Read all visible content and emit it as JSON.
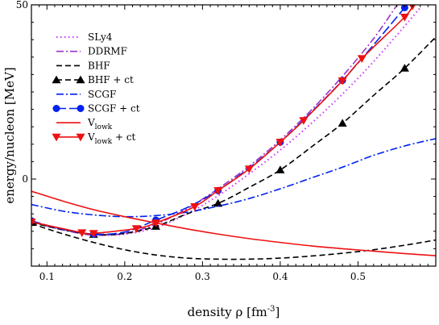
{
  "chart_data": {
    "type": "line",
    "title": "",
    "xlabel": "density ρ [fm",
    "xlabel_sup": "-3",
    "xlabel_tail": "]",
    "ylabel": "energy/nucleon [MeV]",
    "xlim": [
      0.08,
      0.6
    ],
    "ylim": [
      -25,
      50
    ],
    "x_ticks": [
      "0.1",
      "0.2",
      "0.3",
      "0.4",
      "0.5"
    ],
    "x_tick_values": [
      0.1,
      0.2,
      0.3,
      0.4,
      0.5
    ],
    "y_ticks": [
      "0",
      "50"
    ],
    "y_tick_values": [
      0,
      50
    ],
    "grid": false,
    "legend_position": "top-left",
    "series": [
      {
        "name": "SLy4",
        "color": "#cc33ff",
        "dash": "dotted",
        "marker": "none",
        "x": [
          0.08,
          0.12,
          0.16,
          0.2,
          0.24,
          0.28,
          0.32,
          0.36,
          0.4,
          0.44,
          0.48,
          0.52,
          0.56,
          0.58
        ],
        "y": [
          -12.3,
          -14.5,
          -15.9,
          -15.8,
          -13.9,
          -10.0,
          -4.8,
          1.5,
          8.3,
          16.0,
          24.4,
          33.7,
          43.9,
          49.2
        ]
      },
      {
        "name": "DDRMF",
        "color": "#9933cc",
        "dash": "dashdot",
        "marker": "none",
        "x": [
          0.08,
          0.12,
          0.16,
          0.2,
          0.24,
          0.28,
          0.32,
          0.36,
          0.4,
          0.44,
          0.48,
          0.52,
          0.55
        ],
        "y": [
          -12.3,
          -14.6,
          -16.1,
          -15.6,
          -13.0,
          -8.5,
          -2.8,
          3.7,
          11.2,
          19.8,
          29.5,
          40.3,
          49.9
        ]
      },
      {
        "name": "BHF",
        "color": "#000000",
        "dash": "dashed",
        "marker": "none",
        "x": [
          0.08,
          0.12,
          0.16,
          0.2,
          0.24,
          0.28,
          0.32,
          0.36,
          0.4,
          0.44,
          0.48,
          0.52,
          0.56,
          0.6
        ],
        "y": [
          -12.8,
          -15.7,
          -18.2,
          -20.3,
          -21.8,
          -22.7,
          -23.0,
          -23.0,
          -22.7,
          -22.1,
          -21.3,
          -20.3,
          -19.0,
          -17.5
        ]
      },
      {
        "name": "BHF + ct",
        "color": "#000000",
        "dash": "dashed",
        "marker": "triangle-up",
        "x": [
          0.08,
          0.12,
          0.16,
          0.2,
          0.24,
          0.28,
          0.32,
          0.36,
          0.4,
          0.44,
          0.48,
          0.52,
          0.56,
          0.6
        ],
        "y": [
          -12.5,
          -14.5,
          -15.9,
          -15.6,
          -13.6,
          -10.0,
          -7.0,
          -2.4,
          2.6,
          9.2,
          16.0,
          24.0,
          31.8,
          40.8
        ]
      },
      {
        "name": "SCGF",
        "color": "#0022ee",
        "dash": "dashdot",
        "marker": "none",
        "x": [
          0.08,
          0.12,
          0.16,
          0.2,
          0.24,
          0.28,
          0.32,
          0.36,
          0.4,
          0.44,
          0.48,
          0.52,
          0.56,
          0.6
        ],
        "y": [
          -7.3,
          -9.2,
          -10.3,
          -10.8,
          -10.5,
          -9.5,
          -7.8,
          -5.6,
          -2.8,
          0.3,
          3.4,
          6.8,
          9.5,
          11.6
        ]
      },
      {
        "name": "SCGF + ct",
        "color": "#0022ee",
        "dash": "longdash",
        "marker": "circle",
        "x": [
          0.08,
          0.12,
          0.16,
          0.2,
          0.24,
          0.28,
          0.32,
          0.36,
          0.4,
          0.44,
          0.48,
          0.52,
          0.56
        ],
        "y": [
          -12.0,
          -14.4,
          -15.8,
          -15.2,
          -11.8,
          -8.2,
          -3.3,
          3.2,
          10.6,
          19.2,
          28.3,
          38.5,
          49.2
        ]
      },
      {
        "name": "V",
        "name_sub": "lowk",
        "color": "#ee1111",
        "dash": "solid",
        "marker": "none",
        "x": [
          0.08,
          0.12,
          0.16,
          0.2,
          0.24,
          0.28,
          0.32,
          0.36,
          0.4,
          0.44,
          0.48,
          0.52,
          0.56,
          0.6
        ],
        "y": [
          -3.5,
          -6.3,
          -8.8,
          -10.8,
          -12.6,
          -14.3,
          -15.8,
          -17.1,
          -18.2,
          -19.2,
          -20.0,
          -20.7,
          -21.4,
          -22.0
        ]
      },
      {
        "name": "V",
        "name_sub": "lowk",
        "name_tail": " + ct",
        "color": "#ee1111",
        "dash": "solid",
        "marker": "triangle-down",
        "x": [
          0.08,
          0.145,
          0.16,
          0.215,
          0.24,
          0.29,
          0.32,
          0.36,
          0.4,
          0.43,
          0.48,
          0.505,
          0.56,
          0.57
        ],
        "y": [
          -12.3,
          -15.4,
          -15.6,
          -14.2,
          -12.6,
          -7.9,
          -3.3,
          2.9,
          10.6,
          16.8,
          28.2,
          34.6,
          46.5,
          49.7
        ]
      }
    ]
  }
}
